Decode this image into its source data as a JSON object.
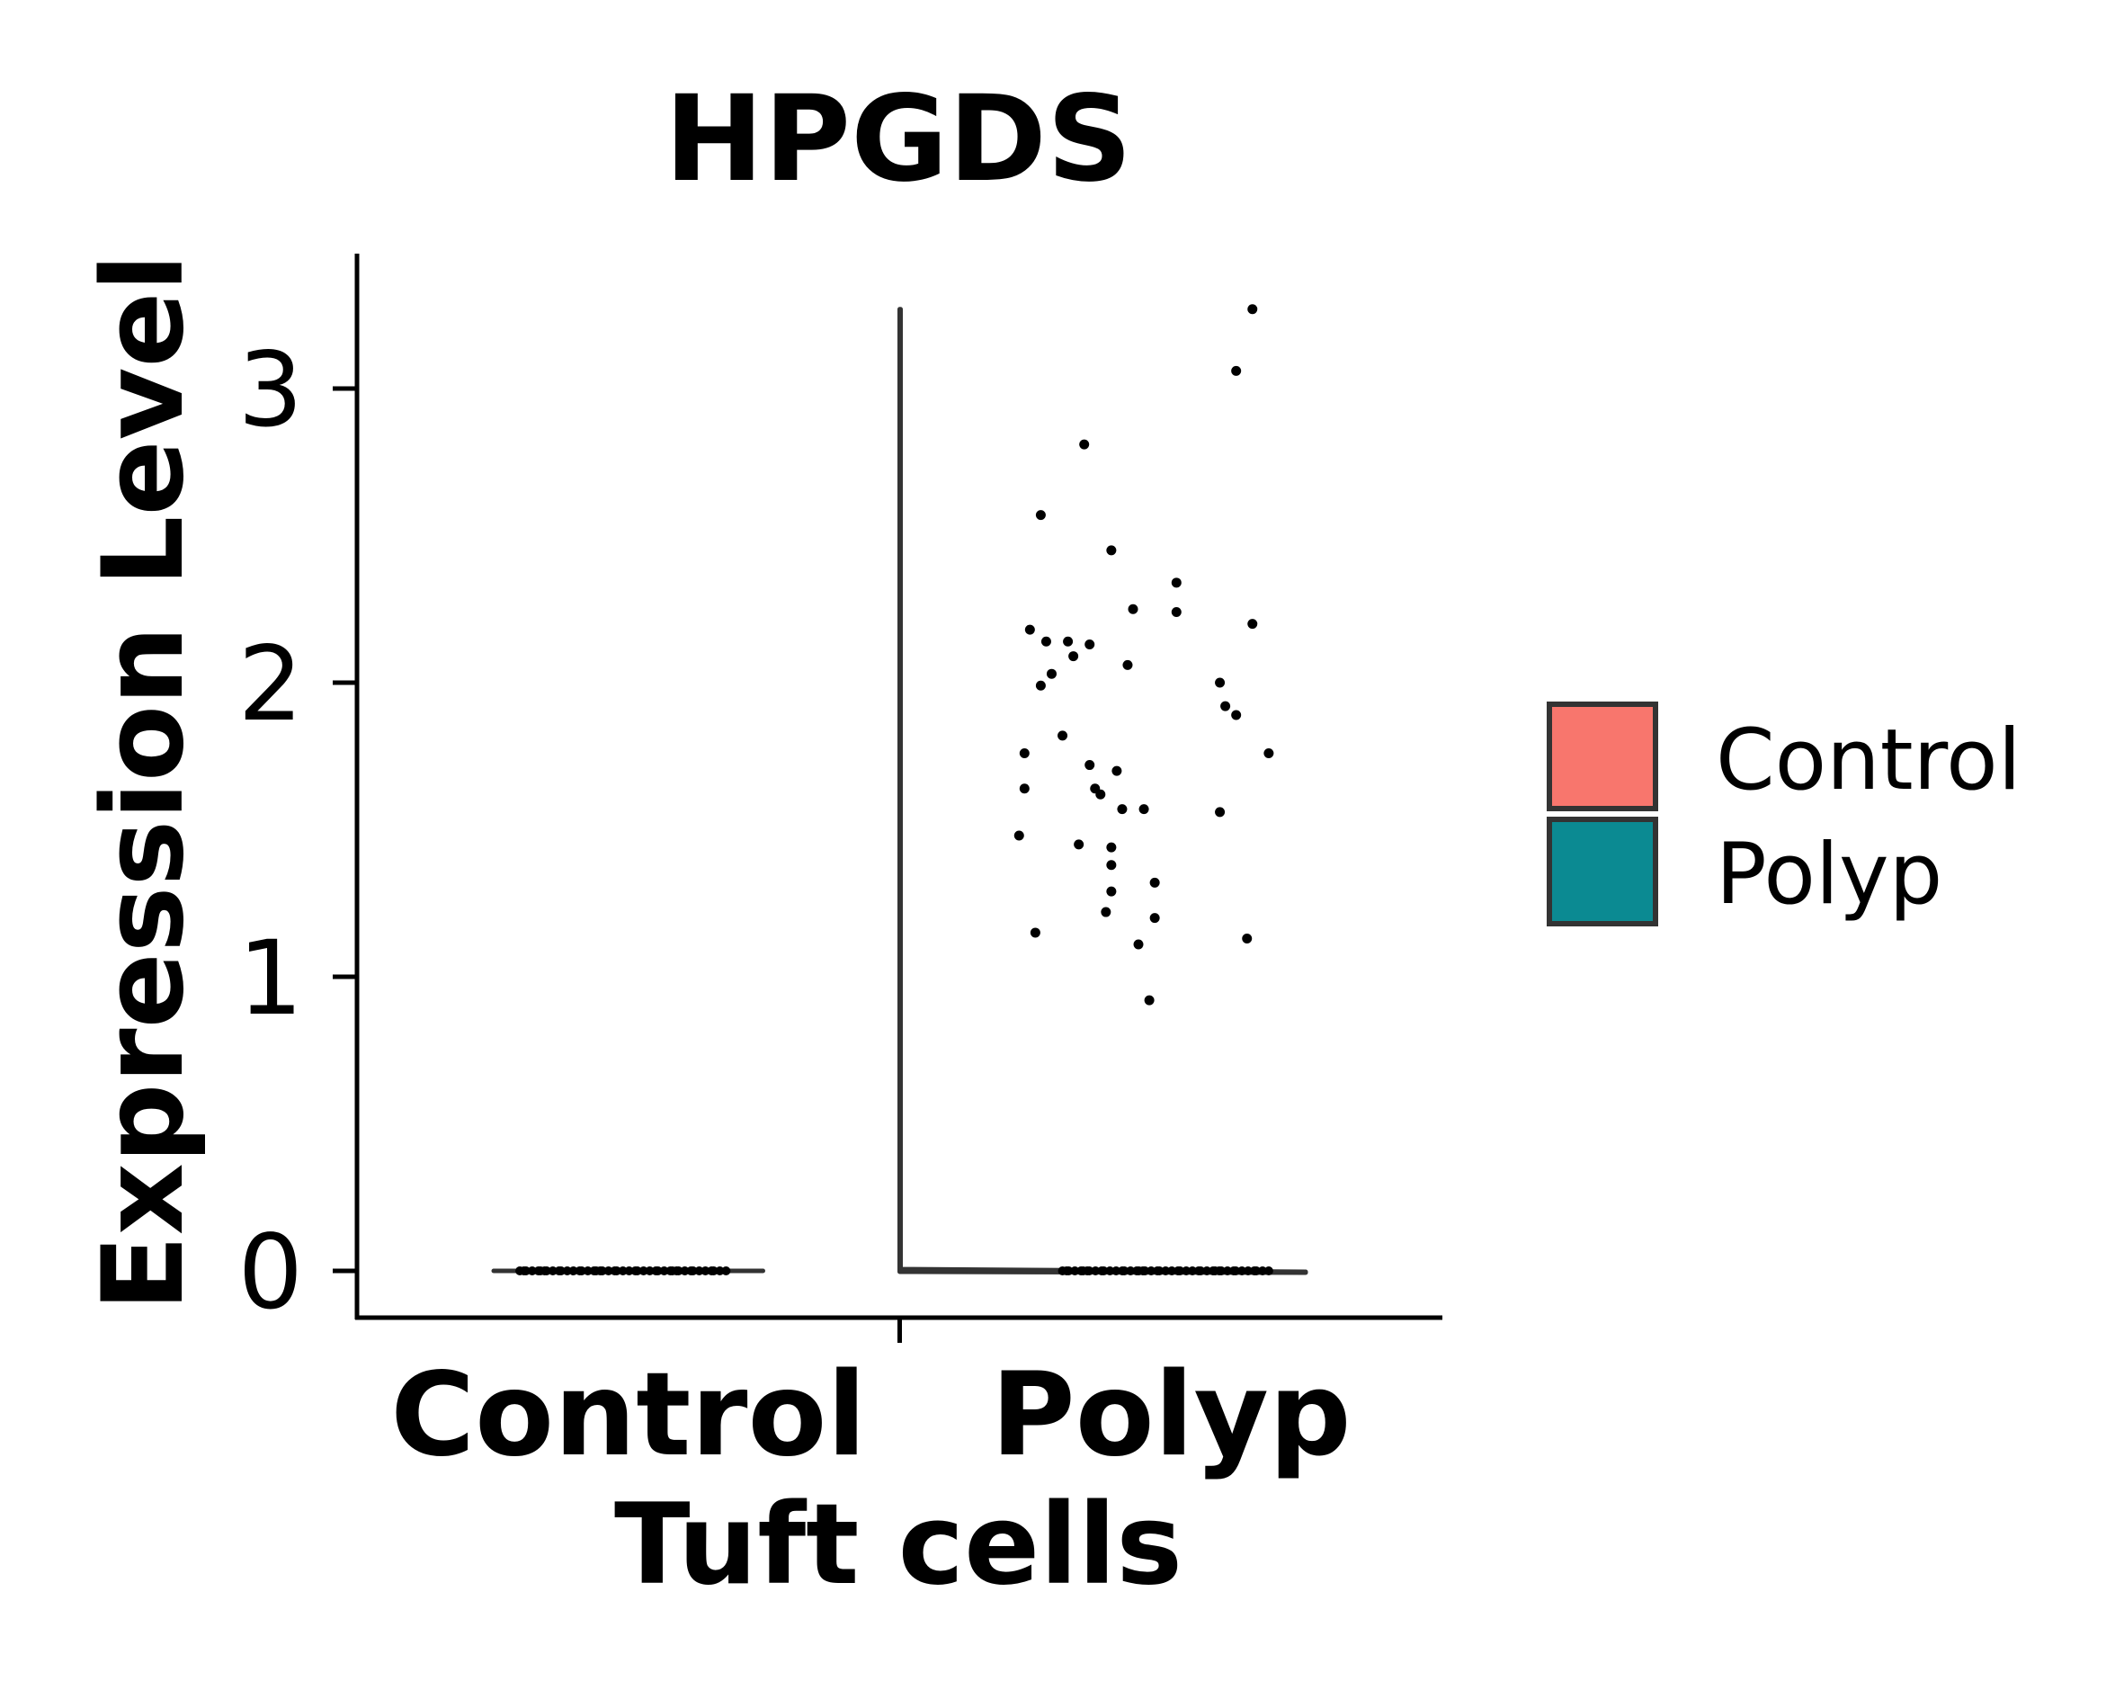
{
  "chart_data": {
    "type": "violin",
    "title": "HPGDS",
    "xlabel": "Tuft cells",
    "ylabel": "Expression Level",
    "categories": [
      "Control",
      "Polyp"
    ],
    "yticks": [
      0,
      1,
      2,
      3
    ],
    "ylim": [
      -0.17,
      3.42
    ],
    "grid": false,
    "legend": {
      "position": "right",
      "entries": [
        {
          "label": "Control",
          "color": "#F8766D"
        },
        {
          "label": "Polyp",
          "color": "#0B8A92"
        }
      ]
    },
    "colors": {
      "Control": "#F8766D",
      "Polyp": "#0B8A92",
      "outline": "#333333"
    },
    "violins": [
      {
        "category": "Control",
        "min": 0,
        "max": 0
      },
      {
        "category": "Polyp",
        "min": 0,
        "max": 3.27
      }
    ],
    "points": {
      "Control": {
        "zero_count": 45,
        "nonzero": []
      },
      "Polyp": {
        "zero_count": 45,
        "nonzero": [
          [
            0.65,
            3.27
          ],
          [
            0.62,
            3.06
          ],
          [
            0.34,
            2.81
          ],
          [
            0.26,
            2.57
          ],
          [
            0.39,
            2.45
          ],
          [
            0.51,
            2.34
          ],
          [
            0.43,
            2.25
          ],
          [
            0.51,
            2.24
          ],
          [
            0.65,
            2.2
          ],
          [
            0.24,
            2.18
          ],
          [
            0.27,
            2.14
          ],
          [
            0.31,
            2.14
          ],
          [
            0.35,
            2.13
          ],
          [
            0.32,
            2.09
          ],
          [
            0.42,
            2.06
          ],
          [
            0.28,
            2.03
          ],
          [
            0.59,
            2.0
          ],
          [
            0.26,
            1.99
          ],
          [
            0.6,
            1.92
          ],
          [
            0.62,
            1.89
          ],
          [
            0.3,
            1.82
          ],
          [
            0.23,
            1.76
          ],
          [
            0.68,
            1.76
          ],
          [
            0.35,
            1.72
          ],
          [
            0.4,
            1.7
          ],
          [
            0.36,
            1.64
          ],
          [
            0.37,
            1.62
          ],
          [
            0.23,
            1.64
          ],
          [
            0.41,
            1.57
          ],
          [
            0.45,
            1.57
          ],
          [
            0.59,
            1.56
          ],
          [
            0.22,
            1.48
          ],
          [
            0.33,
            1.45
          ],
          [
            0.39,
            1.44
          ],
          [
            0.39,
            1.38
          ],
          [
            0.47,
            1.32
          ],
          [
            0.39,
            1.29
          ],
          [
            0.38,
            1.22
          ],
          [
            0.47,
            1.2
          ],
          [
            0.25,
            1.15
          ],
          [
            0.64,
            1.13
          ],
          [
            0.44,
            1.11
          ],
          [
            0.46,
            0.92
          ]
        ]
      }
    }
  }
}
